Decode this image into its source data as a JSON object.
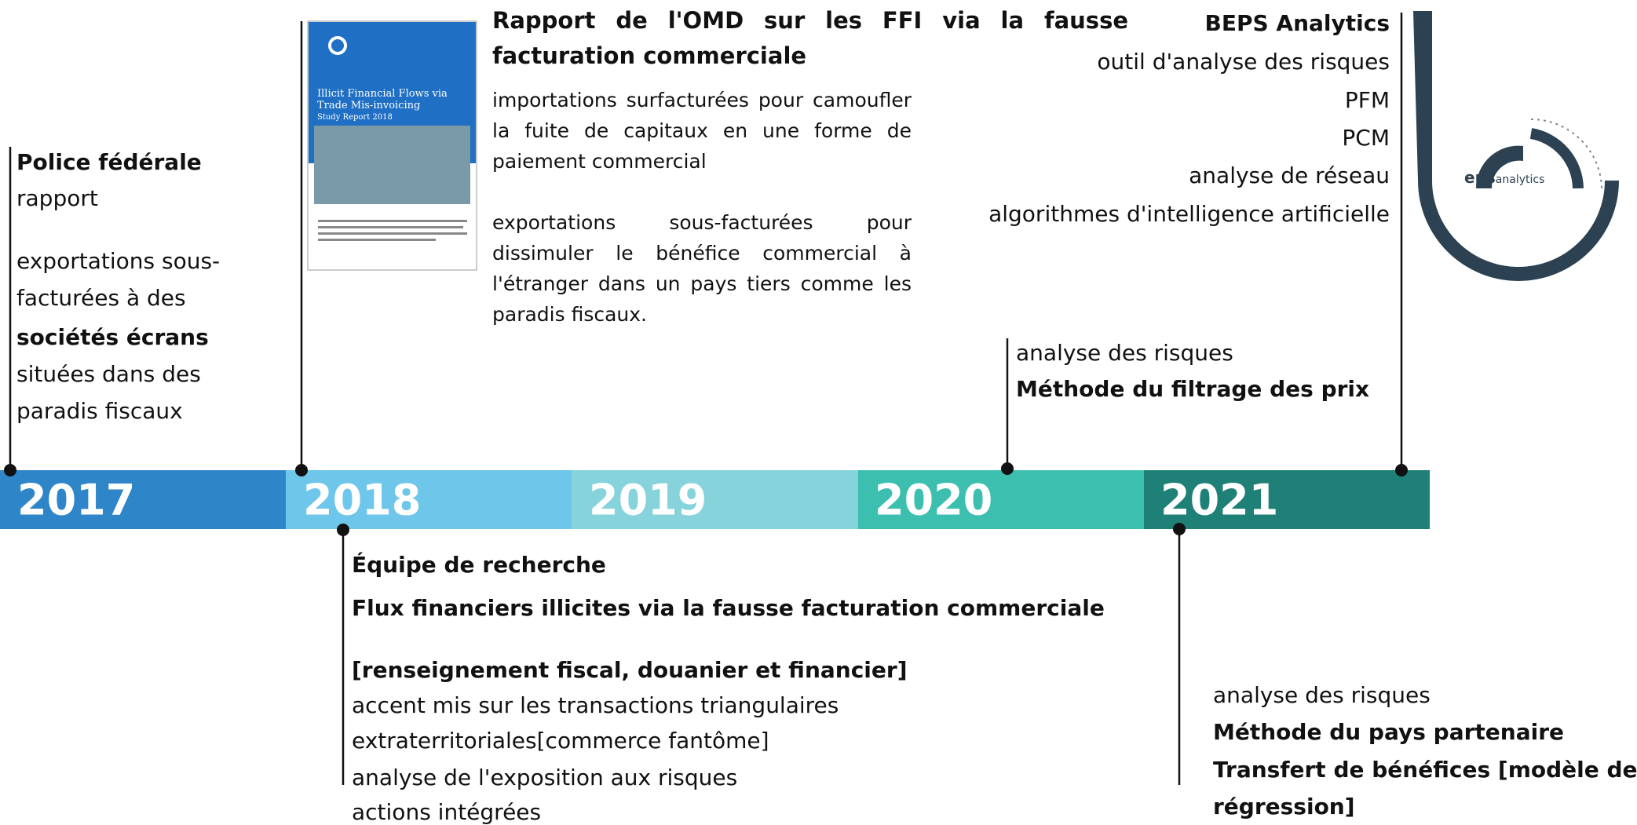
{
  "timeline": {
    "years": [
      "2017",
      "2018",
      "2019",
      "2020",
      "2021"
    ]
  },
  "police": {
    "title": "Police fédérale",
    "subtitle": "rapport",
    "lines": [
      "exportations sous-",
      "facturées à des",
      "sociétés écrans",
      "situées dans des",
      "paradis fiscaux"
    ]
  },
  "report": {
    "title": "Rapport de l'OMD sur les FFI via la fausse facturation commerciale",
    "paragraphs": [
      "importations surfacturées pour camoufler la fuite de capitaux en une forme de paiement commercial",
      "exportations sous-facturées pour dissimuler le bénéfice commercial à l'étranger dans un pays tiers comme les paradis fiscaux."
    ],
    "cover_title": "Illicit Financial Flows via Trade Mis-invoicing",
    "cover_subtitle": "Study Report 2018"
  },
  "beps": {
    "title": "BEPS Analytics",
    "lines": [
      "outil d'analyse des risques",
      "PFM",
      "PCM",
      "analyse de réseau",
      "algorithmes d'intelligence artificielle"
    ],
    "logo_bold": "eps",
    "logo_text": "analytics"
  },
  "research": {
    "title": "Équipe de recherche",
    "subtitle": "Flux financiers illicites via la fausse facturation commerciale",
    "focus": "[renseignement fiscal, douanier et financier]",
    "lines": [
      "accent mis sur les transactions triangulaires",
      "extraterritoriales[commerce fantôme]",
      "analyse de l'exposition aux risques",
      "actions intégrées"
    ]
  },
  "filter": {
    "lines": [
      "analyse des risques",
      "Méthode du filtrage des prix"
    ]
  },
  "partner": {
    "lines": [
      "analyse des risques",
      "Méthode du pays partenaire",
      "Transfert de bénéfices [modèle de",
      "régression]"
    ]
  }
}
